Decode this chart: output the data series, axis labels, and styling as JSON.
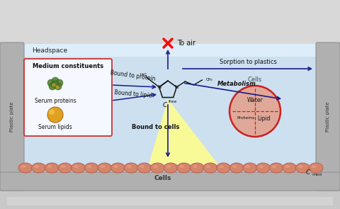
{
  "headspace_label": "Headspace",
  "medium_label": "Medium constituents",
  "serum_proteins_label": "Serum proteins",
  "serum_lipids_label": "Serum lipids",
  "bound_protein_label": "Bound to protein",
  "bound_lipid_label": "Bound to lipid",
  "bound_cells_label": "Bound to cells",
  "cells_label": "Cells",
  "toair_label": "To air",
  "sorption_label": "Sorption to plastics",
  "metabolism_label": "Metabolism",
  "water_label": "Water",
  "protein_label": "Proteins",
  "lipid_label": "Lipid",
  "cells2_label": "Cells",
  "plastic_label": "Plastic plate",
  "cmed_label": "C",
  "cmed_sub": "med",
  "cfree_label": "C",
  "cfree_sub": "free",
  "arrow_color": "#1a1a8c",
  "cell_fill": "#d4856a",
  "cell_edge": "#b86050",
  "plate_color": "#b0b0b0",
  "plate_edge": "#909090",
  "liquid_color": "#cde0f0",
  "headspace_color": "#ddeefa",
  "box_bg": "#f5f8ff",
  "box_edge": "#cc2222",
  "cell_circle_fill": "#e0a898",
  "cell_circle_edge": "#cc2020",
  "lipid_color": "#e0a020",
  "protein_green": "#4a7a2a"
}
